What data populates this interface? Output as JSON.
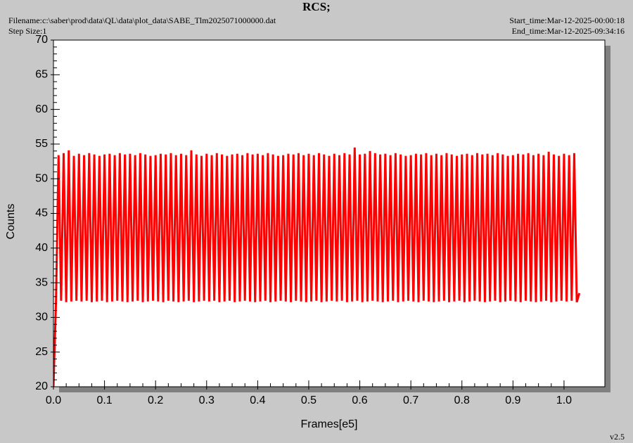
{
  "chart_data": {
    "type": "line",
    "title": "RCS;",
    "filename": "Filename:c:\\saber\\prod\\data\\QL\\data\\plot_data\\SABE_Tlm2025071000000.dat",
    "step_size": "Step Size:1",
    "start_time": "Start_time:Mar-12-2025-00:00:18",
    "end_time": "End_time:Mar-12-2025-09:34:16",
    "version": "v2.5",
    "xlabel": "Frames[e5]",
    "ylabel": "Counts",
    "color": "#ff0000",
    "xlim": [
      0,
      1.08
    ],
    "ylim": [
      20,
      70
    ],
    "xticks": [
      {
        "value": 0,
        "label": "0.0"
      },
      0.1,
      0.2,
      0.3,
      0.4,
      0.5,
      0.6,
      0.7,
      0.8,
      0.9,
      {
        "value": 1,
        "label": "1.0"
      }
    ],
    "yticks": [
      20,
      25,
      30,
      35,
      40,
      45,
      50,
      55,
      60,
      65,
      70
    ],
    "x": [
      0,
      0.005,
      0.01,
      0.015,
      0.02,
      0.025,
      0.03,
      0.035,
      0.04,
      0.045,
      0.05,
      0.055,
      0.06,
      0.065,
      0.07,
      0.075,
      0.08,
      0.085,
      0.09,
      0.095,
      0.1,
      0.105,
      0.11,
      0.115,
      0.12,
      0.125,
      0.13,
      0.135,
      0.14,
      0.145,
      0.15,
      0.155,
      0.16,
      0.165,
      0.17,
      0.175,
      0.18,
      0.185,
      0.19,
      0.195,
      0.2,
      0.205,
      0.21,
      0.215,
      0.22,
      0.225,
      0.23,
      0.235,
      0.24,
      0.245,
      0.25,
      0.255,
      0.26,
      0.265,
      0.27,
      0.275,
      0.28,
      0.285,
      0.29,
      0.295,
      0.3,
      0.305,
      0.31,
      0.315,
      0.32,
      0.325,
      0.33,
      0.335,
      0.34,
      0.345,
      0.35,
      0.355,
      0.36,
      0.365,
      0.37,
      0.375,
      0.38,
      0.385,
      0.39,
      0.395,
      0.4,
      0.405,
      0.41,
      0.415,
      0.42,
      0.425,
      0.43,
      0.435,
      0.44,
      0.445,
      0.45,
      0.455,
      0.46,
      0.465,
      0.47,
      0.475,
      0.48,
      0.485,
      0.49,
      0.495,
      0.5,
      0.505,
      0.51,
      0.515,
      0.52,
      0.525,
      0.53,
      0.535,
      0.54,
      0.545,
      0.55,
      0.555,
      0.56,
      0.565,
      0.57,
      0.575,
      0.58,
      0.585,
      0.59,
      0.595,
      0.6,
      0.605,
      0.61,
      0.615,
      0.62,
      0.625,
      0.63,
      0.635,
      0.64,
      0.645,
      0.65,
      0.655,
      0.66,
      0.665,
      0.67,
      0.675,
      0.68,
      0.685,
      0.69,
      0.695,
      0.7,
      0.705,
      0.71,
      0.715,
      0.72,
      0.725,
      0.73,
      0.735,
      0.74,
      0.745,
      0.75,
      0.755,
      0.76,
      0.765,
      0.77,
      0.775,
      0.78,
      0.785,
      0.79,
      0.795,
      0.8,
      0.805,
      0.81,
      0.815,
      0.82,
      0.825,
      0.83,
      0.835,
      0.84,
      0.845,
      0.85,
      0.855,
      0.86,
      0.865,
      0.87,
      0.875,
      0.88,
      0.885,
      0.89,
      0.895,
      0.9,
      0.905,
      0.91,
      0.915,
      0.92,
      0.925,
      0.93,
      0.935,
      0.94,
      0.945,
      0.95,
      0.955,
      0.96,
      0.965,
      0.97,
      0.975,
      0.98,
      0.985,
      0.99,
      0.995,
      1.0,
      1.005,
      1.01,
      1.015,
      1.02,
      1.025,
      1.03
    ],
    "values": [
      20,
      32.3,
      53.4,
      32.4,
      53.7,
      32.2,
      54.1,
      32.3,
      53.3,
      32.4,
      53.6,
      32.3,
      53.4,
      32.4,
      53.7,
      32.2,
      53.5,
      32.3,
      53.3,
      32.4,
      53.5,
      32.2,
      53.6,
      32.3,
      53.4,
      32.4,
      53.7,
      32.3,
      53.5,
      32.2,
      53.6,
      32.3,
      53.4,
      32.4,
      53.7,
      32.2,
      53.5,
      32.3,
      53.3,
      32.4,
      53.4,
      32.3,
      53.6,
      32.2,
      53.5,
      32.4,
      53.7,
      32.3,
      53.4,
      32.2,
      53.6,
      32.3,
      53.4,
      32.4,
      54.1,
      32.2,
      53.5,
      32.3,
      53.3,
      32.4,
      53.6,
      32.3,
      53.4,
      32.4,
      53.7,
      32.2,
      53.5,
      32.3,
      53.3,
      32.4,
      53.5,
      32.2,
      53.6,
      32.3,
      53.4,
      32.4,
      53.7,
      32.3,
      53.5,
      32.2,
      53.6,
      32.3,
      53.4,
      32.4,
      53.7,
      32.2,
      53.5,
      32.3,
      53.3,
      32.4,
      53.4,
      32.3,
      53.6,
      32.2,
      53.5,
      32.4,
      53.7,
      32.3,
      53.4,
      32.2,
      53.6,
      32.3,
      53.4,
      32.4,
      53.7,
      32.2,
      53.5,
      32.3,
      53.3,
      32.4,
      53.6,
      32.3,
      53.4,
      32.4,
      53.7,
      32.2,
      53.5,
      32.3,
      54.5,
      32.4,
      53.5,
      32.2,
      53.6,
      32.3,
      54.0,
      32.4,
      53.7,
      32.3,
      53.5,
      32.2,
      53.6,
      32.3,
      53.4,
      32.4,
      53.7,
      32.2,
      53.5,
      32.3,
      53.3,
      32.4,
      53.4,
      32.3,
      53.6,
      32.2,
      53.5,
      32.4,
      53.7,
      32.3,
      53.4,
      32.2,
      53.6,
      32.3,
      53.4,
      32.4,
      53.7,
      32.2,
      53.5,
      32.3,
      53.3,
      32.4,
      53.5,
      32.2,
      53.6,
      32.3,
      53.4,
      32.4,
      53.7,
      32.3,
      53.5,
      32.2,
      53.6,
      32.3,
      53.4,
      32.4,
      53.7,
      32.2,
      53.5,
      32.3,
      53.3,
      32.4,
      53.4,
      32.3,
      53.6,
      32.2,
      53.5,
      32.4,
      53.7,
      32.3,
      53.4,
      32.2,
      53.6,
      32.3,
      53.4,
      32.4,
      53.9,
      32.2,
      53.5,
      32.3,
      53.3,
      32.4,
      53.6,
      32.3,
      53.4,
      32.4,
      53.7,
      32.2,
      33.5
    ]
  }
}
